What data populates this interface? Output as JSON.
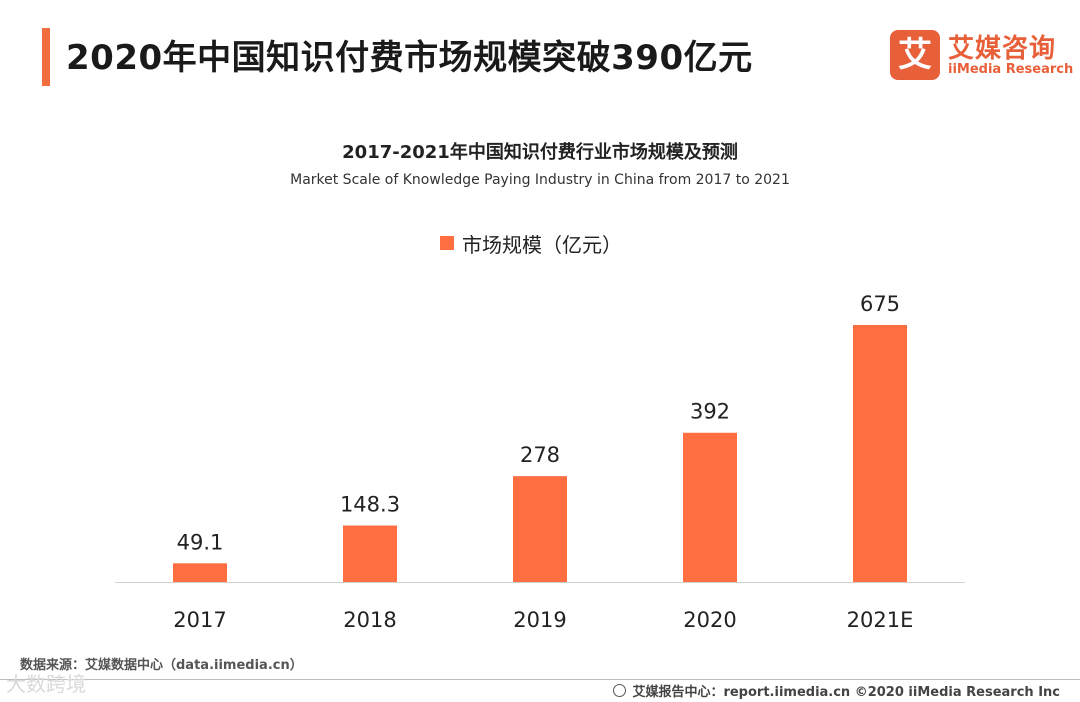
{
  "header": {
    "title": "2020年中国知识付费市场规模突破390亿元",
    "logo_mark": "艾",
    "logo_cn": "艾媒咨询",
    "logo_en": "iiMedia Research"
  },
  "colors": {
    "accent": "#f26d3d",
    "bar": "#ff6e40",
    "axis": "#d0d0d0"
  },
  "chart_data": {
    "type": "bar",
    "title": "2017-2021年中国知识付费行业市场规模及预测",
    "subtitle": "Market Scale of Knowledge Paying  Industry  in China from 2017 to 2021",
    "categories": [
      "2017",
      "2018",
      "2019",
      "2020",
      "2021E"
    ],
    "series": [
      {
        "name": "市场规模（亿元）",
        "values": [
          49.1,
          148.3,
          278,
          392,
          675
        ]
      }
    ],
    "data_labels": [
      "49.1",
      "148.3",
      "278",
      "392",
      "675"
    ],
    "legend_position": "top",
    "grid": false
  },
  "footer": {
    "source": "数据来源：艾媒数据中心（data.iimedia.cn）",
    "watermark": "大数跨境",
    "copyright": "艾媒报告中心：report.iimedia.cn ©2020  iiMedia Research  Inc"
  }
}
